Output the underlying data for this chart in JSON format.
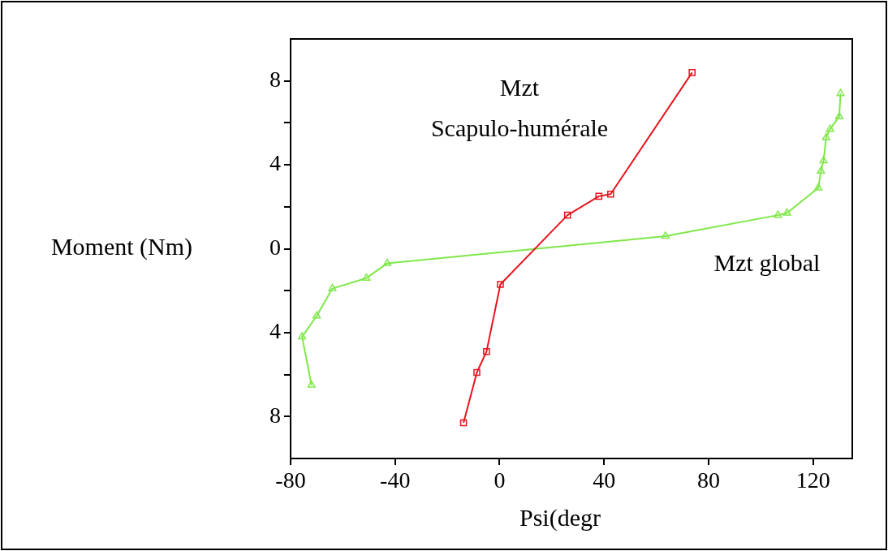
{
  "chart_data": {
    "type": "line",
    "xlabel": "Psi(degr",
    "ylabel": "Moment (Nm)",
    "xlim": [
      -80,
      135
    ],
    "xticks": [
      -80,
      -40,
      0,
      40,
      80,
      120
    ],
    "ylim": [
      -10,
      10
    ],
    "yticks": [
      {
        "value": -8,
        "label": "8"
      },
      {
        "value": -6,
        "label": null
      },
      {
        "value": -4,
        "label": "4"
      },
      {
        "value": -2,
        "label": null
      },
      0,
      {
        "value": 2,
        "label": null
      },
      4,
      {
        "value": 6,
        "label": null
      },
      8
    ],
    "grid": false,
    "legend": false,
    "series": [
      {
        "name": "Mzt Scapulo-humérale",
        "color": "#e8141e",
        "marker": "square",
        "x": [
          -13.8,
          -8.7,
          -5,
          0.3,
          26,
          38,
          42.5,
          73.7
        ],
        "values": [
          -8.3,
          -5.9,
          -4.9,
          -1.7,
          1.6,
          2.5,
          2.6,
          8.4
        ]
      },
      {
        "name": "Mzt global",
        "color": "#7ee848",
        "marker": "triangle",
        "x": [
          -72,
          -75.6,
          -70,
          -64,
          -51,
          -43,
          63.5,
          106.5,
          110,
          122,
          123,
          124,
          125,
          126.5,
          130,
          130.5
        ],
        "values": [
          -6.5,
          -4.2,
          -3.2,
          -1.9,
          -1.4,
          -0.7,
          0.6,
          1.6,
          1.7,
          2.9,
          3.7,
          4.2,
          5.3,
          5.7,
          6.3,
          7.4
        ]
      }
    ]
  }
}
